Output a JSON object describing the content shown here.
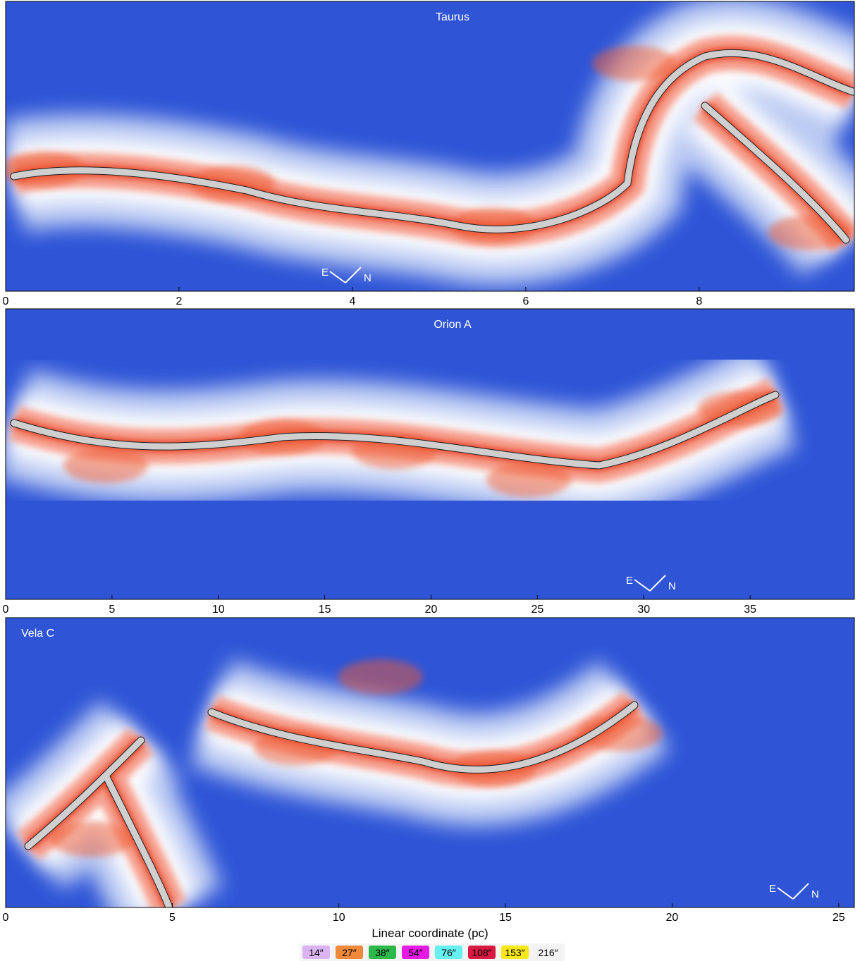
{
  "chart_data": [
    {
      "type": "image",
      "title": "Taurus",
      "xlim": [
        0,
        9.79
      ],
      "xticks": [
        0,
        2,
        4,
        6,
        8
      ],
      "annotations": [
        "E",
        "N"
      ]
    },
    {
      "type": "image",
      "title": "Orion A",
      "xlim": [
        0,
        39.9
      ],
      "xticks": [
        0,
        5,
        10,
        15,
        20,
        25,
        30,
        35
      ],
      "annotations": [
        "E",
        "N"
      ]
    },
    {
      "type": "image",
      "title": "Vela C",
      "xlim": [
        0,
        25.47
      ],
      "xticks": [
        0,
        5,
        10,
        15,
        20,
        25
      ],
      "annotations": [
        "E",
        "N"
      ],
      "xlabel": "Linear coordinate (pc)"
    }
  ],
  "legend": [
    {
      "label": "14″",
      "color": "#d9b3f2"
    },
    {
      "label": "27″",
      "color": "#f08a3a"
    },
    {
      "label": "38″",
      "color": "#2db84a"
    },
    {
      "label": "54″",
      "color": "#e619e6"
    },
    {
      "label": "76″",
      "color": "#66f0f0"
    },
    {
      "label": "108″",
      "color": "#d81a40"
    },
    {
      "label": "153″",
      "color": "#f7e81a"
    },
    {
      "label": "216″",
      "color": "#f2f2f2"
    }
  ]
}
